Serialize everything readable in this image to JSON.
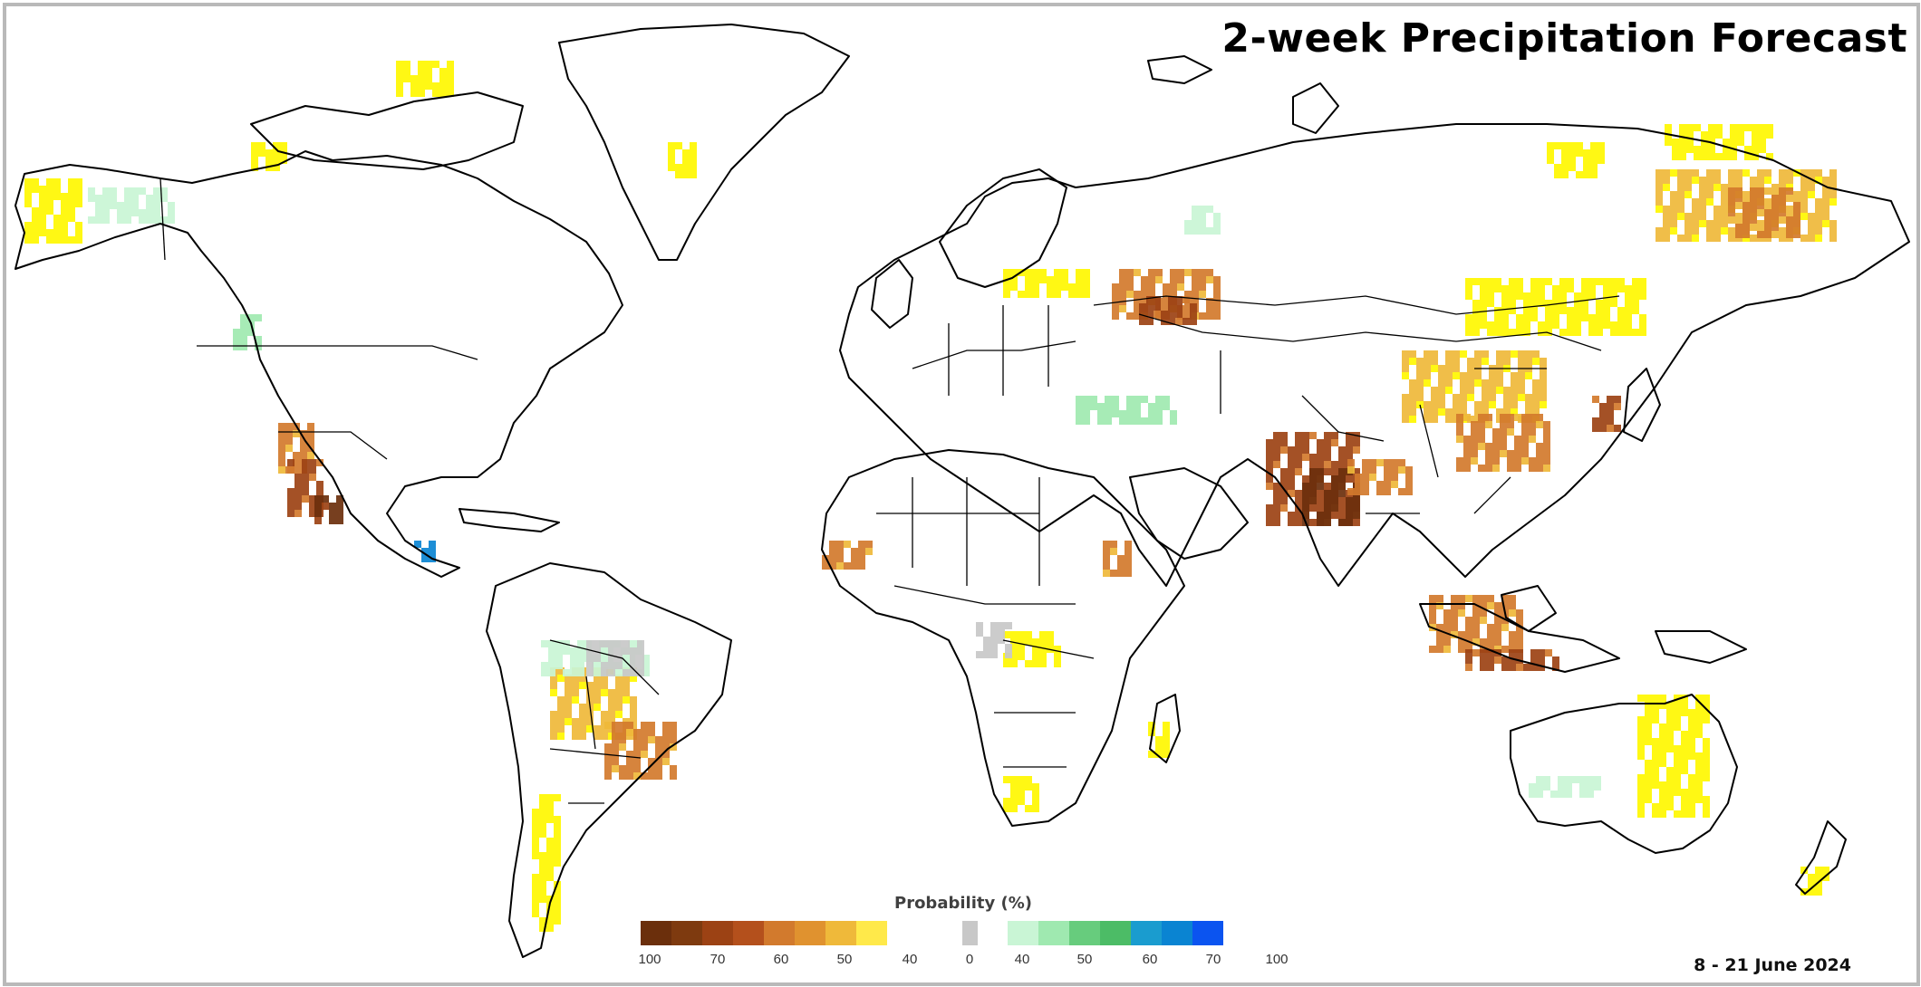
{
  "title": "2-week Precipitation Forecast",
  "date_range": "8 - 21 June 2024",
  "legend": {
    "title": "Probability (%)",
    "dry_colors": [
      "#6b2f0c",
      "#7e3a0f",
      "#9c4214",
      "#b4501c",
      "#d27a2d",
      "#e0922f",
      "#efb93a",
      "#ffe94a",
      "#fff700"
    ],
    "neutral_color": "#c8c8c8",
    "wet_colors": [
      "#c9f5d5",
      "#9fe9b0",
      "#67cc7d",
      "#4cbc66",
      "#1a9ccf",
      "#0a84d2",
      "#0b54f0",
      "#1e3cf5"
    ],
    "dry_ticks": [
      "100",
      "70",
      "60",
      "50",
      "40"
    ],
    "neutral_tick": "0",
    "wet_ticks": [
      "40",
      "50",
      "60",
      "70",
      "100"
    ]
  }
}
